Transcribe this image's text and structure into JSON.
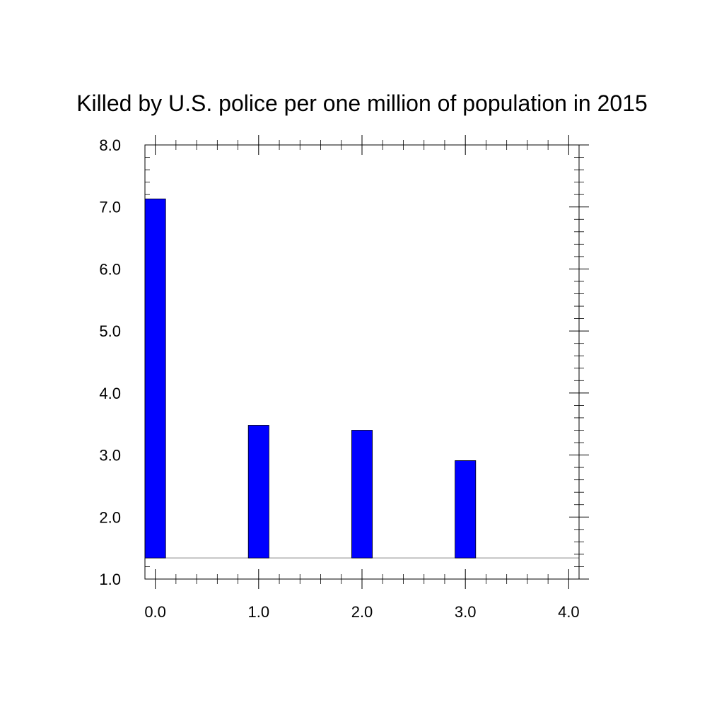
{
  "chart_data": {
    "type": "bar",
    "title": "Killed by U.S. police per one million of population in 2015",
    "xlabel": "",
    "ylabel": "",
    "x": [
      0,
      1,
      2,
      3
    ],
    "values": [
      7.13,
      3.48,
      3.4,
      2.91
    ],
    "baseline": 1.34,
    "xlim": [
      -0.1,
      4.1
    ],
    "ylim": [
      1.0,
      8.0
    ],
    "x_ticks": [
      "0.0",
      "1.0",
      "2.0",
      "3.0",
      "4.0"
    ],
    "y_ticks": [
      "1.0",
      "2.0",
      "3.0",
      "4.0",
      "5.0",
      "6.0",
      "7.0",
      "8.0"
    ],
    "grid": false,
    "legend": "none",
    "bar_color": "#0000ff"
  }
}
